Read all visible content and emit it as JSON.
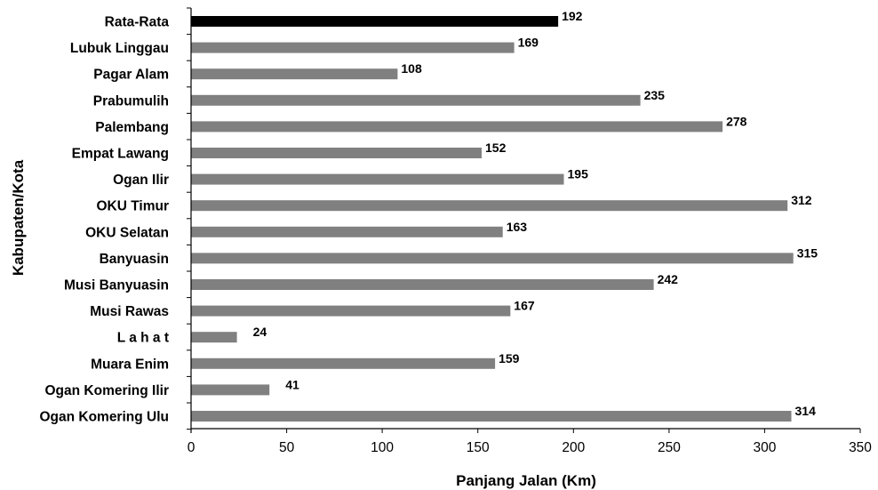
{
  "chart_data": {
    "type": "bar",
    "orientation": "horizontal",
    "title": "",
    "xlabel": "Panjang Jalan (Km)",
    "ylabel": "Kabupaten/Kota",
    "xlim": [
      0,
      350
    ],
    "xticks": [
      0,
      50,
      100,
      150,
      200,
      250,
      300,
      350
    ],
    "grid": false,
    "legend": "none",
    "categories": [
      "Rata-Rata",
      "Lubuk Linggau",
      "Pagar Alam",
      "Prabumulih",
      "Palembang",
      "Empat Lawang",
      "Ogan Ilir",
      "OKU Timur",
      "OKU Selatan",
      "Banyuasin",
      "Musi Banyuasin",
      "Musi Rawas",
      "L a h a t",
      "Muara Enim",
      "Ogan Komering Ilir",
      "Ogan Komering Ulu"
    ],
    "values": [
      192,
      169,
      108,
      235,
      278,
      152,
      195,
      312,
      163,
      315,
      242,
      167,
      24,
      159,
      41,
      314
    ],
    "colors": {
      "highlight": "#000000",
      "bar": "#808080"
    },
    "highlight_category": "Rata-Rata"
  }
}
